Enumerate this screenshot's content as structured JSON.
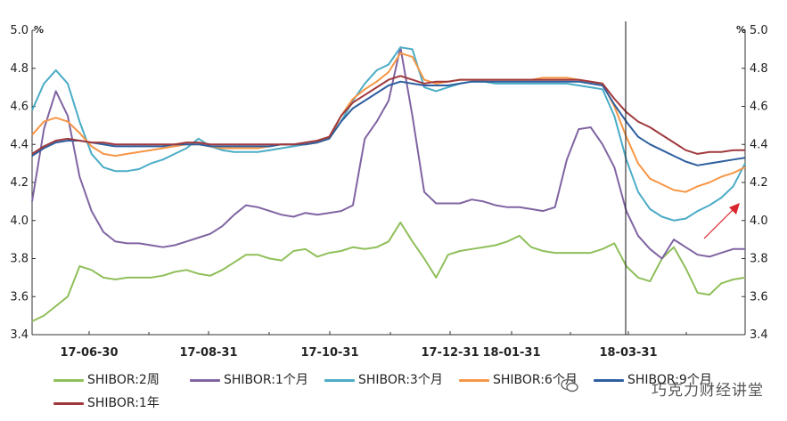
{
  "chart_data": {
    "type": "line",
    "unit_left": "%",
    "unit_right": "%",
    "ylim": [
      3.4,
      5.0
    ],
    "yticks": [
      "5.0",
      "4.8",
      "4.6",
      "4.4",
      "4.2",
      "4.0",
      "3.8",
      "3.6",
      "3.4"
    ],
    "xticks": [
      "17-06-30",
      "17-08-31",
      "17-10-31",
      "17-12-31",
      "18-01-31",
      "18-03-31"
    ],
    "grid": false,
    "legend_position": "bottom",
    "marker_line_at": "18-03-31",
    "series": [
      {
        "name": "SHIBOR:2周",
        "color": "#8fbf5a",
        "values": [
          3.47,
          3.5,
          3.55,
          3.6,
          3.76,
          3.74,
          3.7,
          3.69,
          3.7,
          3.7,
          3.7,
          3.71,
          3.73,
          3.74,
          3.72,
          3.71,
          3.74,
          3.78,
          3.82,
          3.82,
          3.8,
          3.79,
          3.84,
          3.85,
          3.81,
          3.83,
          3.84,
          3.86,
          3.85,
          3.86,
          3.89,
          3.99,
          3.89,
          3.8,
          3.7,
          3.82,
          3.84,
          3.85,
          3.86,
          3.87,
          3.89,
          3.92,
          3.86,
          3.84,
          3.83,
          3.83,
          3.83,
          3.83,
          3.85,
          3.88,
          3.76,
          3.7,
          3.68,
          3.8,
          3.86,
          3.75,
          3.62,
          3.61,
          3.67,
          3.69,
          3.7
        ]
      },
      {
        "name": "SHIBOR:1个月",
        "color": "#8064a2",
        "values": [
          4.1,
          4.48,
          4.68,
          4.55,
          4.23,
          4.05,
          3.94,
          3.89,
          3.88,
          3.88,
          3.87,
          3.86,
          3.87,
          3.89,
          3.91,
          3.93,
          3.97,
          4.03,
          4.08,
          4.07,
          4.05,
          4.03,
          4.02,
          4.04,
          4.03,
          4.04,
          4.05,
          4.08,
          4.43,
          4.52,
          4.63,
          4.91,
          4.55,
          4.15,
          4.09,
          4.09,
          4.09,
          4.11,
          4.1,
          4.08,
          4.07,
          4.07,
          4.06,
          4.05,
          4.07,
          4.32,
          4.48,
          4.49,
          4.4,
          4.28,
          4.05,
          3.92,
          3.85,
          3.8,
          3.9,
          3.86,
          3.82,
          3.81,
          3.83,
          3.85,
          3.85
        ]
      },
      {
        "name": "SHIBOR:3个月",
        "color": "#4bacc6",
        "values": [
          4.58,
          4.72,
          4.79,
          4.72,
          4.52,
          4.35,
          4.28,
          4.26,
          4.26,
          4.27,
          4.3,
          4.32,
          4.35,
          4.38,
          4.43,
          4.39,
          4.37,
          4.36,
          4.36,
          4.36,
          4.37,
          4.38,
          4.39,
          4.4,
          4.41,
          4.43,
          4.52,
          4.63,
          4.72,
          4.79,
          4.82,
          4.91,
          4.9,
          4.7,
          4.68,
          4.7,
          4.72,
          4.73,
          4.73,
          4.72,
          4.72,
          4.72,
          4.72,
          4.72,
          4.72,
          4.72,
          4.71,
          4.7,
          4.69,
          4.55,
          4.32,
          4.15,
          4.06,
          4.02,
          4.0,
          4.01,
          4.05,
          4.08,
          4.12,
          4.18,
          4.3
        ]
      },
      {
        "name": "SHIBOR:6个月",
        "color": "#f79646",
        "values": [
          4.45,
          4.52,
          4.54,
          4.52,
          4.46,
          4.39,
          4.35,
          4.34,
          4.35,
          4.36,
          4.37,
          4.38,
          4.39,
          4.4,
          4.4,
          4.39,
          4.38,
          4.38,
          4.38,
          4.38,
          4.39,
          4.4,
          4.4,
          4.4,
          4.41,
          4.43,
          4.55,
          4.64,
          4.69,
          4.73,
          4.78,
          4.88,
          4.86,
          4.74,
          4.72,
          4.73,
          4.74,
          4.74,
          4.74,
          4.74,
          4.74,
          4.74,
          4.74,
          4.75,
          4.75,
          4.75,
          4.74,
          4.73,
          4.72,
          4.6,
          4.44,
          4.3,
          4.22,
          4.19,
          4.16,
          4.15,
          4.18,
          4.2,
          4.23,
          4.25,
          4.28
        ]
      },
      {
        "name": "SHIBOR:9个月",
        "color": "#2e5f9e",
        "values": [
          4.34,
          4.38,
          4.41,
          4.42,
          4.42,
          4.41,
          4.4,
          4.39,
          4.39,
          4.39,
          4.39,
          4.39,
          4.4,
          4.4,
          4.4,
          4.39,
          4.39,
          4.39,
          4.39,
          4.39,
          4.39,
          4.4,
          4.4,
          4.4,
          4.41,
          4.43,
          4.52,
          4.59,
          4.63,
          4.67,
          4.71,
          4.73,
          4.72,
          4.71,
          4.71,
          4.71,
          4.72,
          4.73,
          4.73,
          4.73,
          4.73,
          4.73,
          4.73,
          4.73,
          4.73,
          4.73,
          4.73,
          4.72,
          4.71,
          4.61,
          4.52,
          4.44,
          4.4,
          4.37,
          4.34,
          4.31,
          4.29,
          4.3,
          4.31,
          4.32,
          4.33
        ]
      },
      {
        "name": "SHIBOR:1年",
        "color": "#a0393e",
        "values": [
          4.35,
          4.39,
          4.42,
          4.43,
          4.42,
          4.41,
          4.41,
          4.4,
          4.4,
          4.4,
          4.4,
          4.4,
          4.4,
          4.41,
          4.41,
          4.4,
          4.4,
          4.4,
          4.4,
          4.4,
          4.4,
          4.4,
          4.4,
          4.41,
          4.42,
          4.44,
          4.55,
          4.62,
          4.66,
          4.7,
          4.74,
          4.76,
          4.74,
          4.72,
          4.73,
          4.73,
          4.74,
          4.74,
          4.74,
          4.74,
          4.74,
          4.74,
          4.74,
          4.74,
          4.74,
          4.74,
          4.74,
          4.73,
          4.72,
          4.64,
          4.57,
          4.52,
          4.49,
          4.45,
          4.41,
          4.37,
          4.35,
          4.36,
          4.36,
          4.37,
          4.37
        ]
      }
    ]
  },
  "watermark": "巧克力财经讲堂"
}
